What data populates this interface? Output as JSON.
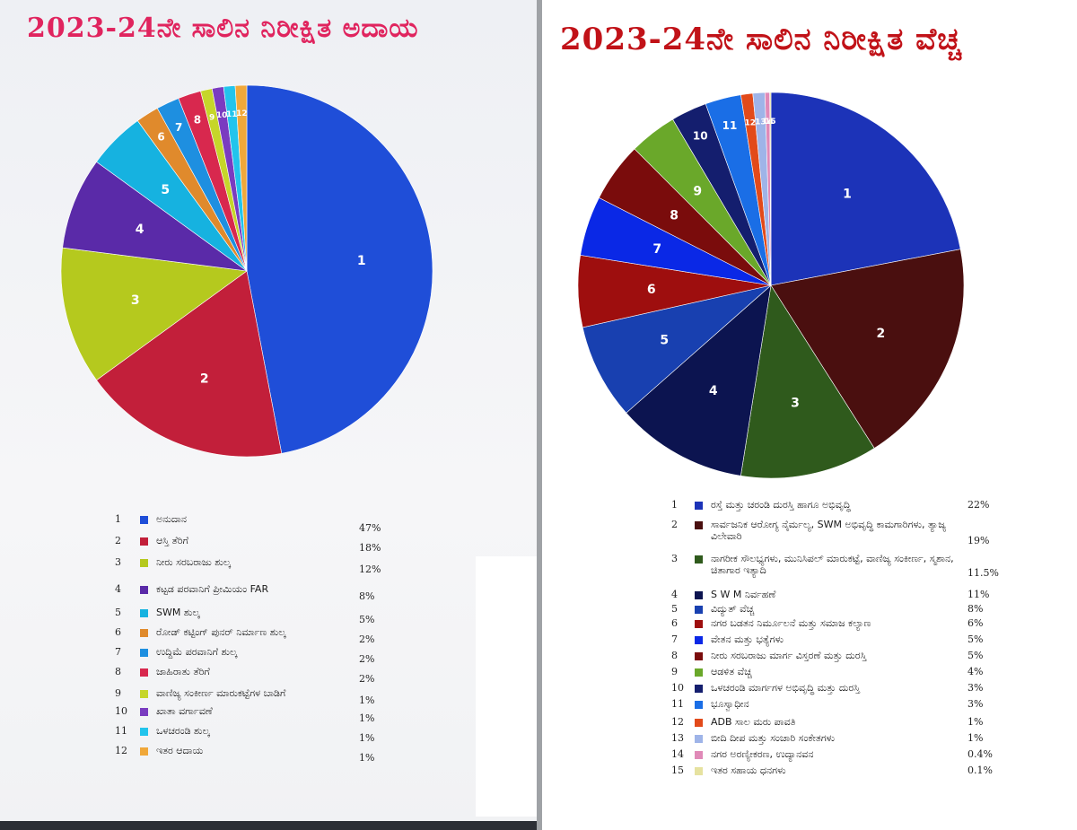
{
  "chart_data": [
    {
      "type": "pie",
      "title": "2023-24ನೇ ಸಾಲಿನ ನಿರೀಕ್ಷಿತ ಅದಾಯ",
      "slice_labels": [
        "1",
        "2",
        "3",
        "4",
        "5",
        "6",
        "7",
        "8",
        "9",
        "10",
        "11",
        "12"
      ],
      "legend": [
        {
          "num": "1",
          "label": "ಅನುದಾನ",
          "value_text": "47%",
          "value": 47,
          "color": "#1f4ed8"
        },
        {
          "num": "2",
          "label": "ಆಸ್ತಿ ತೆರಿಗೆ",
          "value_text": "18%",
          "value": 18,
          "color": "#c21f3a"
        },
        {
          "num": "3",
          "label": "ನೀರು ಸರಬರಾಜು ಶುಲ್ಕ",
          "value_text": "12%",
          "value": 12,
          "color": "#b5c91e"
        },
        {
          "num": "4",
          "label": "ಕಟ್ಟಡ ಪರವಾನಿಗೆ ಪ್ರೀಮಿಯಂ FAR",
          "value_text": "8%",
          "value": 8,
          "color": "#5a2aa8"
        },
        {
          "num": "5",
          "label": "SWM ಶುಲ್ಕ",
          "value_text": "5%",
          "value": 5,
          "color": "#16b2e0"
        },
        {
          "num": "6",
          "label": "ರೋಡ್ ಕಟ್ಟಿಂಗ್ ಪುನರ್ ನಿರ್ಮಾಣ ಶುಲ್ಕ",
          "value_text": "2%",
          "value": 2,
          "color": "#e08a2c"
        },
        {
          "num": "7",
          "label": "ಉದ್ದಿಮೆ ಪರವಾನಿಗೆ ಶುಲ್ಕ",
          "value_text": "2%",
          "value": 2,
          "color": "#1e8fe0"
        },
        {
          "num": "8",
          "label": "ಜಾಹಿರಾತು ತೆರಿಗೆ",
          "value_text": "2%",
          "value": 2,
          "color": "#d8284e"
        },
        {
          "num": "9",
          "label": "ವಾಣಿಜ್ಯ ಸಂಕೀರ್ಣ ಮಾರುಕಟ್ಟೆಗಳ ಬಾಡಿಗೆ",
          "value_text": "1%",
          "value": 1,
          "color": "#c6d62a"
        },
        {
          "num": "10",
          "label": "ಖಾತಾ ವರ್ಗಾವಣೆ",
          "value_text": "1%",
          "value": 1,
          "color": "#7a3cc0"
        },
        {
          "num": "11",
          "label": "ಒಳಚರಂಡಿ ಶುಲ್ಕ",
          "value_text": "1%",
          "value": 1,
          "color": "#22c4ec"
        },
        {
          "num": "12",
          "label": "ಇತರ ಆದಾಯ",
          "value_text": "1%",
          "value": 1,
          "color": "#f0a83a"
        }
      ]
    },
    {
      "type": "pie",
      "title": "2023-24ನೇ ಸಾಲಿನ ನಿರೀಕ್ಷಿತ ವೆಚ್ಚ",
      "slice_labels": [
        "1",
        "2",
        "3",
        "4",
        "5",
        "6",
        "7",
        "8",
        "9",
        "10",
        "11",
        "12",
        "13",
        "14",
        "15"
      ],
      "legend": [
        {
          "num": "1",
          "label": "ರಸ್ತೆ ಮತ್ತು ಚರಂಡಿ ದುರಸ್ತಿ ಹಾಗೂ ಅಭಿವೃದ್ಧಿ",
          "value_text": "22%",
          "value": 22,
          "color": "#1c33b8"
        },
        {
          "num": "2",
          "label": "ಸಾರ್ವಜನಿಕ ಆರೋಗ್ಯ ನೈರ್ಮಲ್ಯ, SWM ಅಭಿವೃದ್ಧಿ ಕಾಮಗಾರಿಗಳು, ತ್ಯಾಜ್ಯ ವಿಲೇವಾರಿ",
          "value_text": "19%",
          "value": 19,
          "color": "#4a0f0f"
        },
        {
          "num": "3",
          "label": "ನಾಗರೀಕ ಸೌಲಭ್ಯಗಳು, ಮುನಿಸಿಪಲ್ ಮಾರುಕಟ್ಟೆ, ವಾಣಿಜ್ಯ ಸಂಕೀರ್ಣ, ಸ್ಮಶಾನ, ಚಿತಾಗಾರ ಇತ್ಯಾದಿ",
          "value_text": "11.5%",
          "value": 11.5,
          "color": "#2f5a1c"
        },
        {
          "num": "4",
          "label": "S W M ನಿರ್ವಹಣೆ",
          "value_text": "11%",
          "value": 11,
          "color": "#0c1450"
        },
        {
          "num": "5",
          "label": "ವಿದ್ಯುತ್ ವೆಚ್ಚ",
          "value_text": "8%",
          "value": 8,
          "color": "#1840b0"
        },
        {
          "num": "6",
          "label": "ನಗರ ಬಡತನ ನಿರ್ಮೂಲನೆ ಮತ್ತು ಸಮಾಜ ಕಲ್ಯಾಣ",
          "value_text": "6%",
          "value": 6,
          "color": "#9e0e0e"
        },
        {
          "num": "7",
          "label": "ವೇತನ ಮತ್ತು ಭತ್ಯೆಗಳು",
          "value_text": "5%",
          "value": 5,
          "color": "#0a28e6"
        },
        {
          "num": "8",
          "label": "ನೀರು ಸರಬರಾಜು ಮಾರ್ಗ ವಿಸ್ತರಣೆ ಮತ್ತು ದುರಸ್ತಿ",
          "value_text": "5%",
          "value": 5,
          "color": "#7a0c0c"
        },
        {
          "num": "9",
          "label": "ಆಡಳಿತ ವೆಚ್ಚ",
          "value_text": "4%",
          "value": 4,
          "color": "#6aa82a"
        },
        {
          "num": "10",
          "label": "ಒಳಚರಂಡಿ ಮಾರ್ಗಗಳ ಅಭಿವೃದ್ಧಿ ಮತ್ತು ದುರಸ್ತಿ",
          "value_text": "3%",
          "value": 3,
          "color": "#141e6e"
        },
        {
          "num": "11",
          "label": "ಭೂಸ್ವಾಧೀನ",
          "value_text": "3%",
          "value": 3,
          "color": "#1a6ee6"
        },
        {
          "num": "12",
          "label": "ADB ಸಾಲ ಮರು ಪಾವತಿ",
          "value_text": "1%",
          "value": 1,
          "color": "#e24a1a"
        },
        {
          "num": "13",
          "label": "ಬೀದಿ ದೀಪ ಮತ್ತು ಸಂಚಾರಿ ಸಂಕೇತಗಳು",
          "value_text": "1%",
          "value": 1,
          "color": "#9fb4e8"
        },
        {
          "num": "14",
          "label": "ನಗರ ಅರಣ್ಯೀಕರಣ, ಉದ್ಯಾನವನ",
          "value_text": "0.4%",
          "value": 0.4,
          "color": "#e08ab8"
        },
        {
          "num": "15",
          "label": "ಇತರ ಸಹಾಯ ಧನಗಳು",
          "value_text": "0.1%",
          "value": 0.1,
          "color": "#e6e2a0"
        }
      ]
    }
  ]
}
